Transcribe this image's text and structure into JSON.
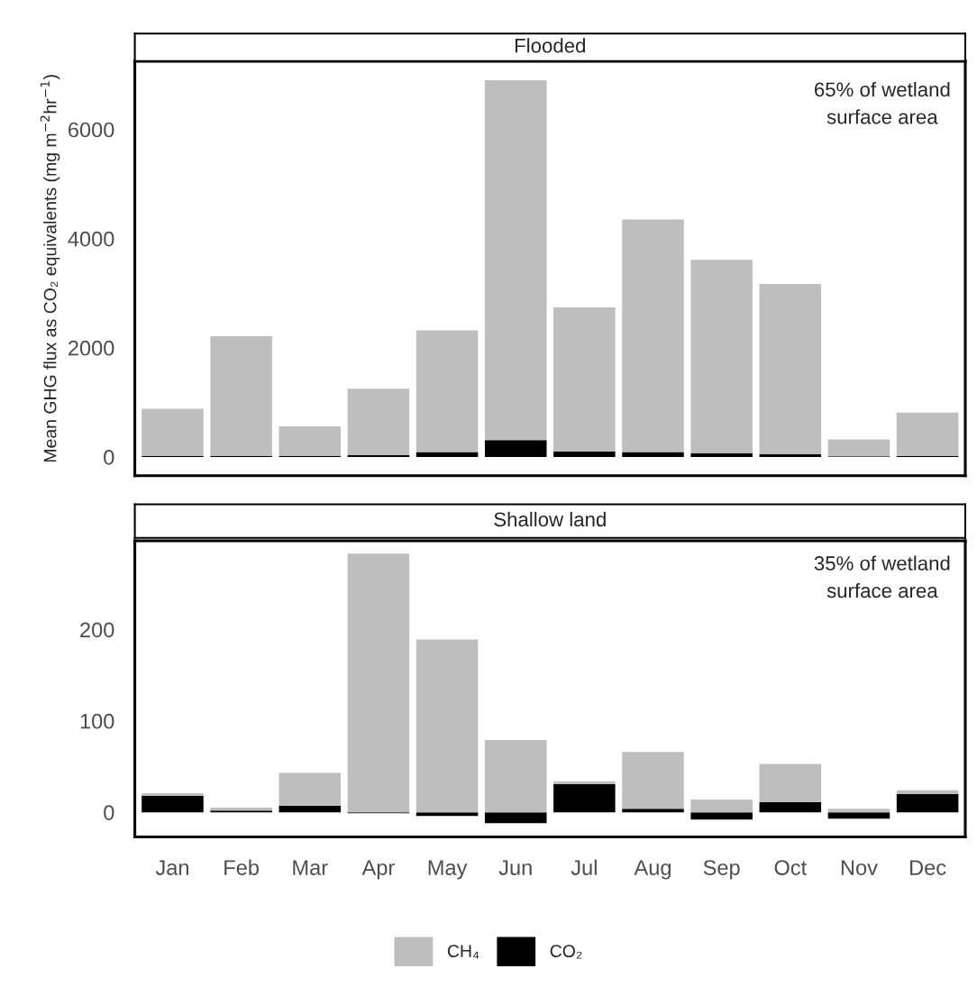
{
  "chart_data": [
    {
      "type": "bar",
      "title": "Flooded",
      "ylabel": "Mean GHG flux as CO₂ equivalents (mg m$^{−2}$hr$^{−1}$)",
      "stacked": true,
      "categories": [
        null,
        null,
        null,
        null,
        null,
        null,
        null,
        null,
        null,
        null,
        null,
        null
      ],
      "series": [
        {
          "color": "#000000",
          "values": [
            20,
            20,
            20,
            30,
            90,
            310,
            100,
            90,
            70,
            50,
            10,
            20
          ]
        },
        {
          "color": "#bebebe",
          "values": [
            860,
            2190,
            540,
            1220,
            2230,
            6590,
            2640,
            4260,
            3540,
            3120,
            310,
            790
          ]
        }
      ],
      "ylim": [
        -345,
        7250
      ],
      "yticks": [
        0,
        2000,
        4000,
        6000
      ],
      "tick_labels": "y",
      "grid": false,
      "annotations": [
        "65% of wetland\nsurface area"
      ]
    },
    {
      "type": "bar",
      "title": "Shallow land",
      "stacked": true,
      "categories": [
        "Jan",
        "Feb",
        "Mar",
        "Apr",
        "May",
        "Jun",
        "Jul",
        "Aug",
        "Sep",
        "Oct",
        "Nov",
        "Dec"
      ],
      "series": [
        {
          "name": "CO₂",
          "color": "#000000",
          "values": [
            18,
            2,
            7,
            -1,
            -4,
            -12,
            31,
            4,
            -8,
            11,
            -7,
            20
          ]
        },
        {
          "name": "CH₄",
          "color": "#bebebe",
          "values": [
            3,
            3,
            36,
            283,
            189,
            79,
            3,
            62,
            14,
            42,
            4,
            4
          ]
        }
      ],
      "ylim": [
        -27,
        297
      ],
      "yticks": [
        0,
        100,
        200
      ],
      "grid": false,
      "legend": "bottom",
      "annotations": [
        "35% of wetland\nsurface area"
      ]
    }
  ]
}
